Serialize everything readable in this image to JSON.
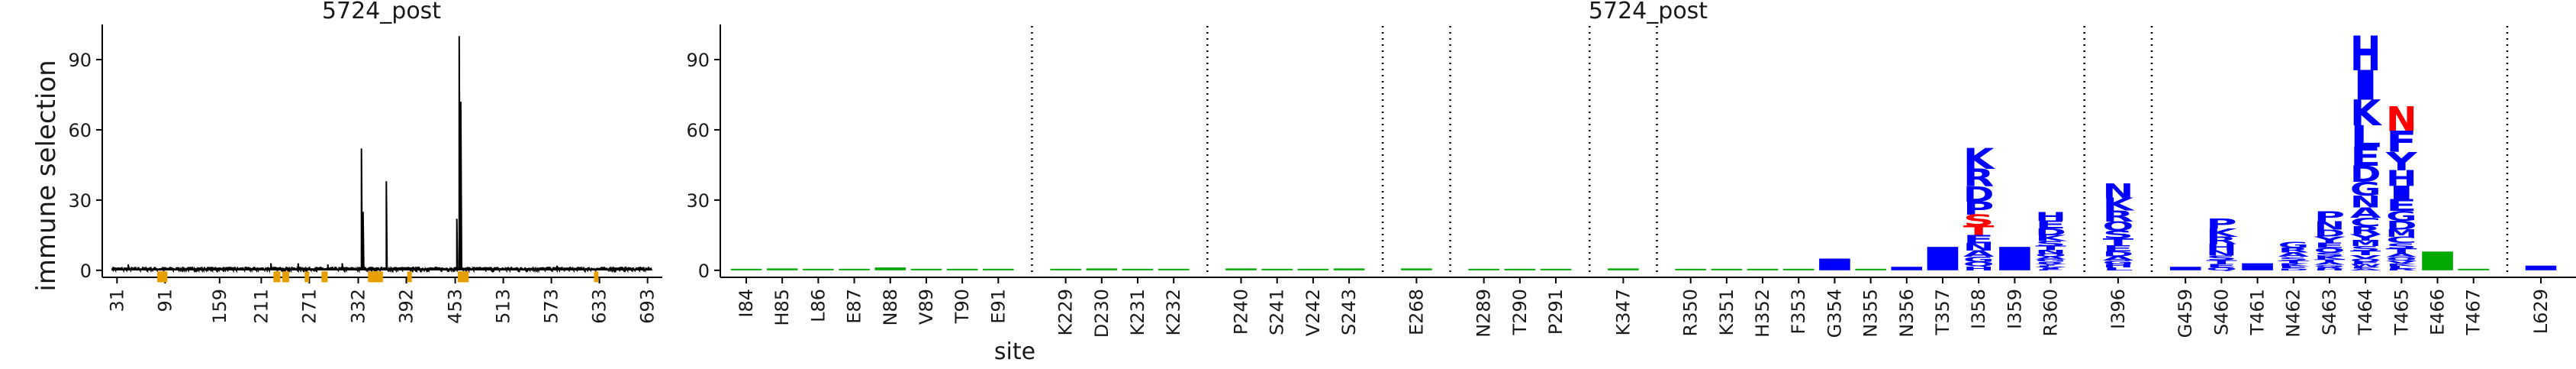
{
  "ylabel": "immune selection",
  "xlabel": "site",
  "chart_data": [
    {
      "type": "line",
      "title": "5724_post",
      "ylabel": "immune selection",
      "ylim": [
        -3,
        105
      ],
      "xlim": [
        24,
        700
      ],
      "yticks": [
        0,
        30,
        60,
        90
      ],
      "xticks": [
        "31",
        "91",
        "159",
        "211",
        "271",
        "332",
        "392",
        "453",
        "513",
        "573",
        "633",
        "693"
      ],
      "xtick_values": [
        31,
        91,
        159,
        211,
        271,
        332,
        392,
        453,
        513,
        573,
        633,
        693
      ],
      "line_color": "#000000",
      "baseline": 1.0,
      "peaks": [
        {
          "x": 336,
          "y": 52
        },
        {
          "x": 338,
          "y": 25
        },
        {
          "x": 367,
          "y": 38
        },
        {
          "x": 455,
          "y": 22
        },
        {
          "x": 458,
          "y": 100
        },
        {
          "x": 460,
          "y": 72
        },
        {
          "x": 223,
          "y": 3
        },
        {
          "x": 257,
          "y": 3
        },
        {
          "x": 294,
          "y": 2.5
        },
        {
          "x": 312,
          "y": 3
        },
        {
          "x": 45,
          "y": 2.5
        },
        {
          "x": 580,
          "y": 2
        }
      ],
      "highlight_sites": [
        84,
        85,
        86,
        87,
        88,
        89,
        90,
        91,
        229,
        230,
        231,
        232,
        240,
        241,
        242,
        243,
        268,
        289,
        290,
        291,
        347,
        350,
        351,
        352,
        353,
        354,
        355,
        356,
        357,
        358,
        359,
        360,
        396,
        459,
        460,
        461,
        462,
        463,
        464,
        465,
        466,
        467,
        629
      ],
      "highlight_color": "#e69f00"
    },
    {
      "type": "logo",
      "title": "5724_post",
      "ylim": [
        -3,
        105
      ],
      "yticks": [
        0,
        30,
        60,
        90
      ],
      "separator_style": "dotted",
      "sites": [
        "I84",
        "H85",
        "L86",
        "E87",
        "N88",
        "V89",
        "T90",
        "E91",
        "K229",
        "D230",
        "K231",
        "K232",
        "P240",
        "S241",
        "V242",
        "S243",
        "E268",
        "N289",
        "T290",
        "P291",
        "K347",
        "R350",
        "K351",
        "H352",
        "F353",
        "G354",
        "N355",
        "N356",
        "T357",
        "I358",
        "I359",
        "R360",
        "I396",
        "G459",
        "S460",
        "T461",
        "N462",
        "S463",
        "T464",
        "T465",
        "E466",
        "T467",
        "L629"
      ],
      "groups": [
        [
          "I84",
          "H85",
          "L86",
          "E87",
          "N88",
          "V89",
          "T90",
          "E91"
        ],
        [
          "K229",
          "D230",
          "K231",
          "K232"
        ],
        [
          "P240",
          "S241",
          "V242",
          "S243"
        ],
        [
          "E268"
        ],
        [
          "N289",
          "T290",
          "P291"
        ],
        [
          "K347"
        ],
        [
          "R350",
          "K351",
          "H352",
          "F353",
          "G354",
          "N355",
          "N356",
          "T357",
          "I358",
          "I359",
          "R360"
        ],
        [
          "I396"
        ],
        [
          "G459",
          "S460",
          "T461",
          "N462",
          "S463",
          "T464",
          "T465",
          "E466",
          "T467"
        ],
        [
          "L629"
        ]
      ],
      "stack_values": {
        "I84": 0.4,
        "H85": 0.8,
        "L86": 0.4,
        "E87": 0.4,
        "N88": 1.2,
        "V89": 0.4,
        "T90": 0.4,
        "E91": 0.4,
        "K229": 0.4,
        "D230": 0.8,
        "K231": 0.4,
        "K232": 0.4,
        "P240": 0.8,
        "S241": 0.4,
        "V242": 0.4,
        "S243": 0.8,
        "E268": 0.8,
        "N289": 0.4,
        "T290": 0.4,
        "P291": 0.4,
        "K347": 0.8,
        "R350": 0.4,
        "K351": 0.4,
        "H352": 0.6,
        "F353": 0.4,
        "G354": 5,
        "N355": 0.4,
        "N356": 1.5,
        "T357": 10,
        "I358": 52,
        "I359": 10,
        "R360": 25,
        "I396": 37,
        "G459": 1.5,
        "S460": 22,
        "T461": 3,
        "N462": 12,
        "S463": 25,
        "T464": 100,
        "T465": 70,
        "E466": 8,
        "T467": 0.6,
        "L629": 2
      },
      "letters": {
        "I358": [
          "K",
          "R",
          "D",
          "P",
          "S",
          "T",
          "E",
          "N",
          "A",
          "G",
          "Q",
          "H"
        ],
        "I396": [
          "N",
          "K",
          "R",
          "Q",
          "S",
          "T",
          "E",
          "D",
          "A",
          "G",
          "H",
          "L"
        ],
        "T464": [
          "H",
          "I",
          "K",
          "L",
          "E",
          "D",
          "G",
          "N",
          "A",
          "C",
          "R",
          "Y",
          "M",
          "S",
          "T",
          "V",
          "Q",
          "F",
          "W",
          "P",
          "A"
        ],
        "T465": [
          "N",
          "F",
          "Y",
          "H",
          "I",
          "E",
          "G",
          "D",
          "M",
          "C",
          "S",
          "T",
          "A",
          "Q",
          "V",
          "K",
          "L",
          "R"
        ],
        "S463": [
          "P",
          "N",
          "D",
          "Y",
          "E",
          "Q",
          "S",
          "K",
          "T",
          "A",
          "G",
          "R",
          "H"
        ],
        "N462": [
          "G",
          "R",
          "A",
          "S",
          "T",
          "K",
          "E",
          "D"
        ],
        "S460": [
          "P",
          "K",
          "R",
          "H",
          "N",
          "S",
          "T",
          "E",
          "Q"
        ],
        "R360": [
          "H",
          "E",
          "D",
          "K",
          "S",
          "T",
          "N",
          "Q",
          "A",
          "G",
          "R",
          "Y",
          "L",
          "V",
          "I",
          "F"
        ]
      },
      "red_letters": {
        "I358": [
          "S",
          "T"
        ],
        "T465": [
          "N"
        ]
      },
      "colors": {
        "positive": "#0000ff",
        "negative": "#ff0000",
        "inconsequential": "#00aa00"
      }
    }
  ]
}
